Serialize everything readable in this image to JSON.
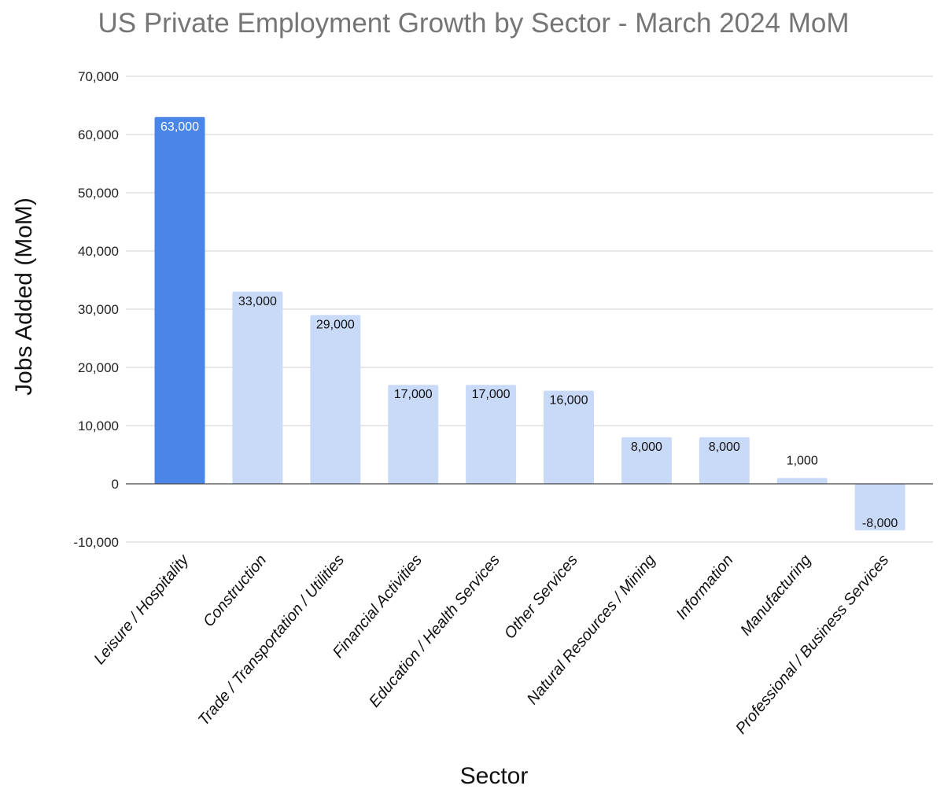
{
  "chart_data": {
    "type": "bar",
    "title": "US Private Employment Growth by Sector - March 2024 MoM",
    "xlabel": "Sector",
    "ylabel": "Jobs Added (MoM)",
    "ylim": [
      -10000,
      70000
    ],
    "yticks": [
      -10000,
      0,
      10000,
      20000,
      30000,
      40000,
      50000,
      60000,
      70000
    ],
    "grid": true,
    "legend": "none",
    "categories": [
      "Leisure / Hospitality",
      "Construction",
      "Trade / Transportation / Utilities",
      "Financial Activities",
      "Education / Health Services",
      "Other Services",
      "Natural Resources / Mining",
      "Information",
      "Manufacturing",
      "Professional / Business Services"
    ],
    "values": [
      63000,
      33000,
      29000,
      17000,
      17000,
      16000,
      8000,
      8000,
      1000,
      -8000
    ],
    "highlight_index": 0,
    "colors": {
      "highlight": "#4a86e8",
      "bar": "#c9daf8",
      "grid": "#d0d0d0",
      "title": "#757575"
    }
  }
}
